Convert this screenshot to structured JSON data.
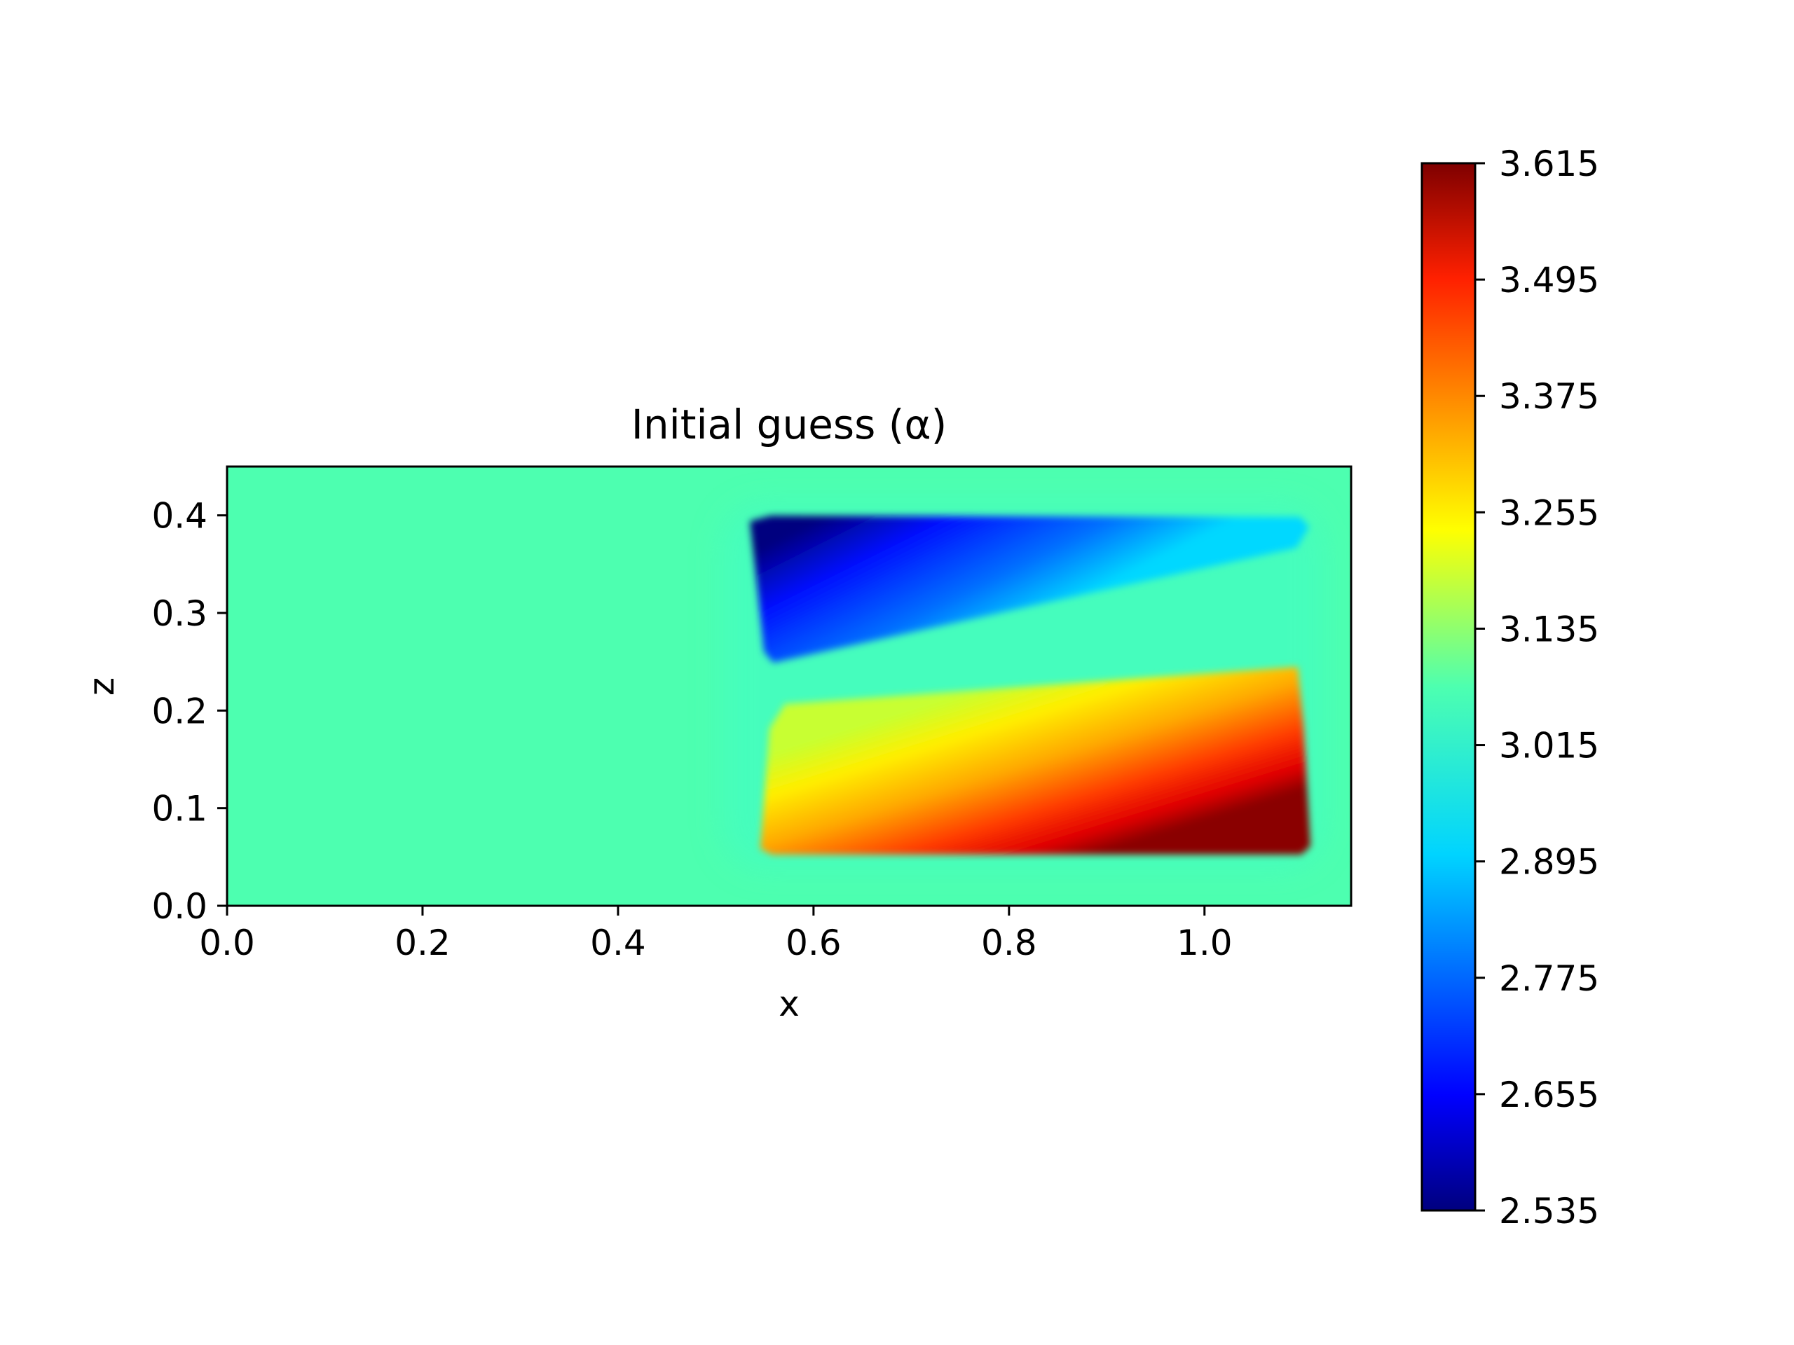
{
  "chart_data": {
    "type": "heatmap",
    "title": "Initial guess (α)",
    "xlabel": "x",
    "ylabel": "z",
    "xlim": [
      0.0,
      1.15
    ],
    "ylim": [
      0.0,
      0.45
    ],
    "xticks": [
      "0.0",
      "0.2",
      "0.4",
      "0.6",
      "0.8",
      "1.0"
    ],
    "yticks": [
      "0.0",
      "0.1",
      "0.2",
      "0.3",
      "0.4"
    ],
    "background_value": 3.015,
    "field": {
      "description": "anomaly region",
      "x_range": [
        0.55,
        1.1
      ],
      "z_range": [
        0.05,
        0.4
      ],
      "upper_part": {
        "z_range": [
          0.25,
          0.4
        ],
        "value_min": 2.535,
        "value_max": 2.95
      },
      "lower_part": {
        "z_range": [
          0.05,
          0.24
        ],
        "value_min": 3.15,
        "value_max": 3.615
      }
    },
    "colorbar": {
      "colormap": "jet",
      "min": 2.535,
      "max": 3.615,
      "ticks": [
        "2.535",
        "2.655",
        "2.775",
        "2.895",
        "3.015",
        "3.135",
        "3.255",
        "3.375",
        "3.495",
        "3.615"
      ]
    }
  }
}
